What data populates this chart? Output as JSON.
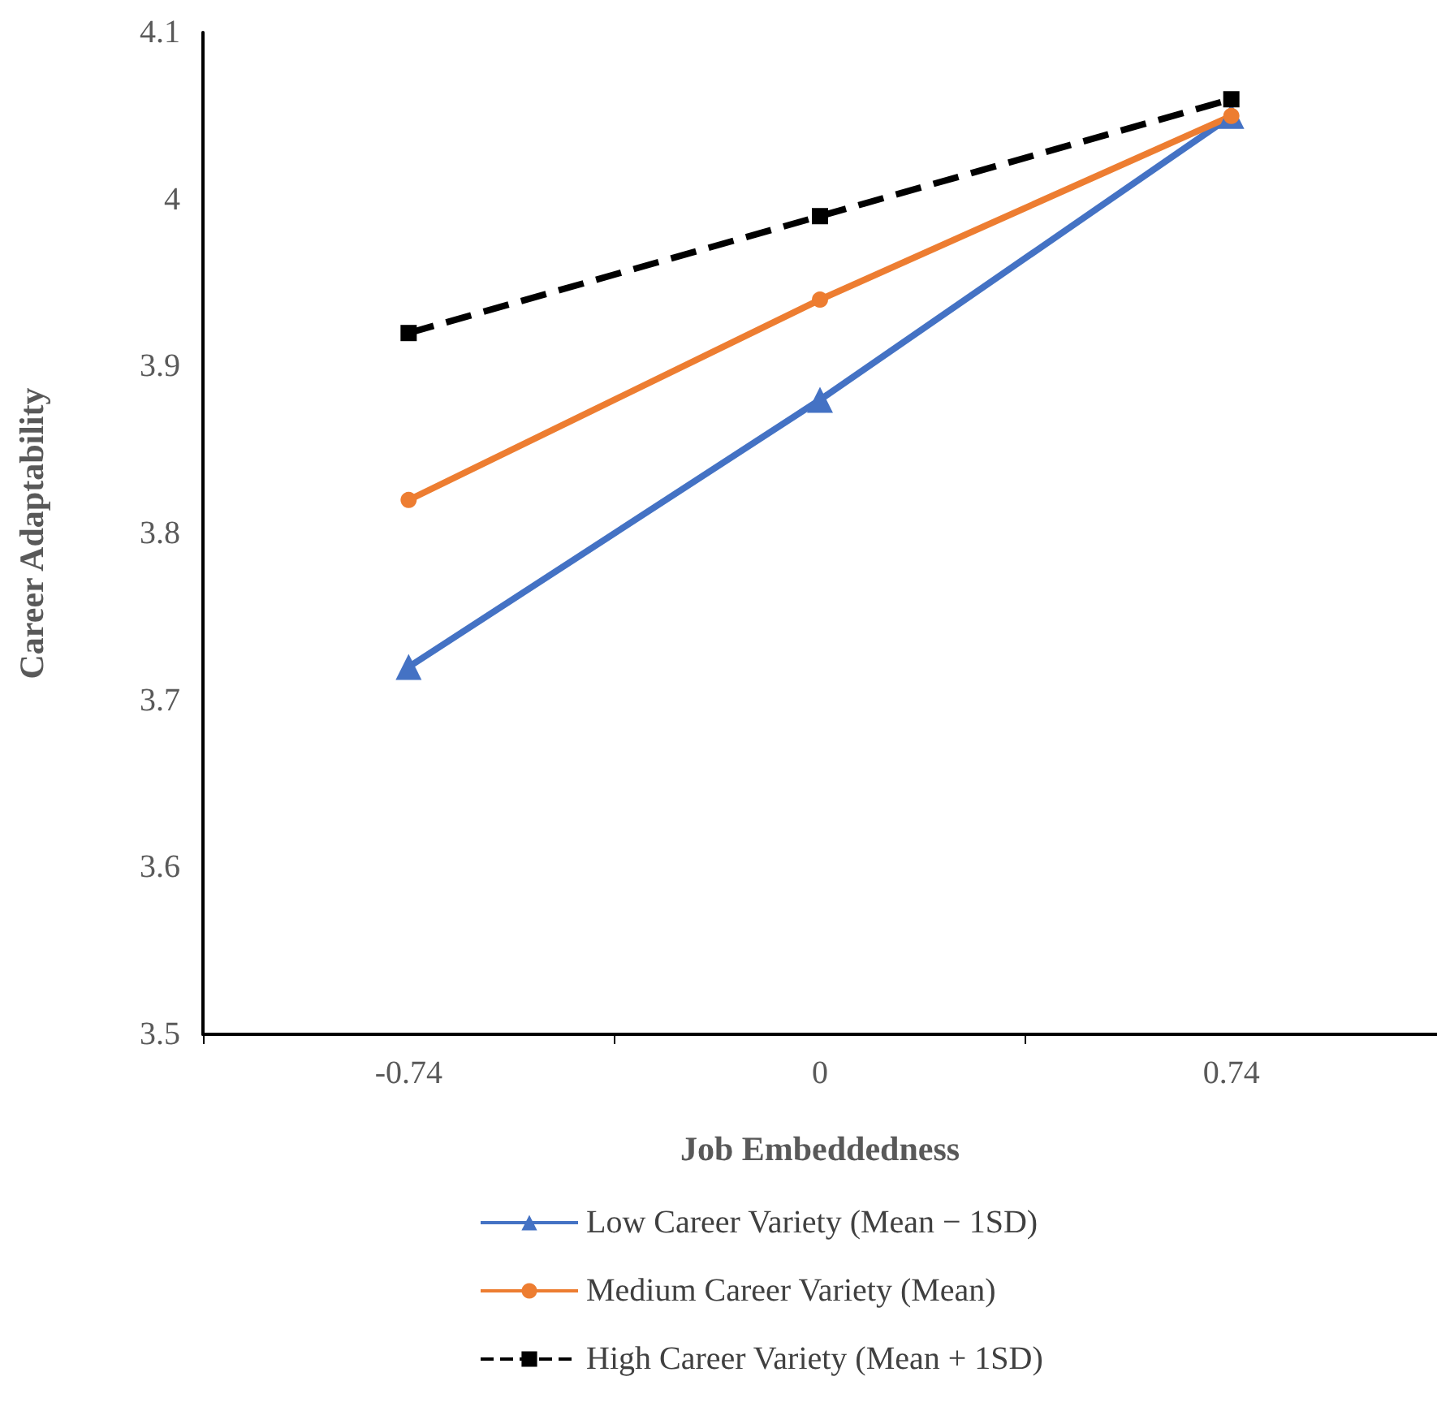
{
  "chart_data": {
    "type": "line",
    "xlabel": "Job Embeddedness",
    "ylabel": "Career Adaptability",
    "categories": [
      "-0.74",
      "0",
      "0.74"
    ],
    "series": [
      {
        "name": "Low Career Variety (Mean − 1SD)",
        "color": "#4472c4",
        "values": [
          3.72,
          3.88,
          4.05
        ],
        "marker": "triangle",
        "line_style": "solid"
      },
      {
        "name": "Medium Career Variety (Mean)",
        "color": "#ed7d31",
        "values": [
          3.82,
          3.94,
          4.05
        ],
        "marker": "circle",
        "line_style": "solid"
      },
      {
        "name": "High Career Variety (Mean + 1SD)",
        "color": "#000000",
        "values": [
          3.92,
          3.99,
          4.06
        ],
        "marker": "square",
        "line_style": "dashed"
      }
    ],
    "ylim": [
      3.5,
      4.1
    ],
    "yticks": [
      3.5,
      3.6,
      3.7,
      3.8,
      3.9,
      4,
      4.1
    ],
    "grid": false,
    "legend": "bottom"
  }
}
